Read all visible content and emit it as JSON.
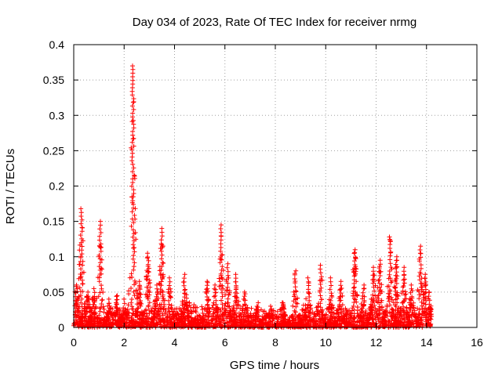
{
  "chart_data": {
    "type": "scatter",
    "title": "Day 034 of 2023, Rate Of TEC Index for receiver nrmg",
    "xlabel": "GPS time / hours",
    "ylabel": "ROTI / TECUs",
    "xlim": [
      0,
      16
    ],
    "ylim": [
      0,
      0.4
    ],
    "x_ticks": [
      "0",
      "2",
      "4",
      "6",
      "8",
      "10",
      "12",
      "14",
      "16"
    ],
    "y_ticks": [
      "0",
      "0.05",
      "0.1",
      "0.15",
      "0.2",
      "0.25",
      "0.3",
      "0.35",
      "0.4"
    ],
    "grid": true,
    "marker": "+",
    "color": "#ff0000",
    "series": [
      {
        "name": "ROTI",
        "peaks": [
          {
            "x": 0.1,
            "y": 0.06
          },
          {
            "x": 0.3,
            "y": 0.168
          },
          {
            "x": 0.55,
            "y": 0.05
          },
          {
            "x": 0.8,
            "y": 0.055
          },
          {
            "x": 1.05,
            "y": 0.15
          },
          {
            "x": 1.4,
            "y": 0.04
          },
          {
            "x": 1.7,
            "y": 0.045
          },
          {
            "x": 2.0,
            "y": 0.04
          },
          {
            "x": 2.35,
            "y": 0.37
          },
          {
            "x": 2.6,
            "y": 0.065
          },
          {
            "x": 2.95,
            "y": 0.105
          },
          {
            "x": 3.3,
            "y": 0.06
          },
          {
            "x": 3.5,
            "y": 0.14
          },
          {
            "x": 3.8,
            "y": 0.07
          },
          {
            "x": 4.4,
            "y": 0.075
          },
          {
            "x": 4.6,
            "y": 0.035
          },
          {
            "x": 5.3,
            "y": 0.065
          },
          {
            "x": 5.6,
            "y": 0.06
          },
          {
            "x": 5.85,
            "y": 0.145
          },
          {
            "x": 6.1,
            "y": 0.09
          },
          {
            "x": 6.45,
            "y": 0.075
          },
          {
            "x": 6.8,
            "y": 0.05
          },
          {
            "x": 7.3,
            "y": 0.035
          },
          {
            "x": 7.8,
            "y": 0.03
          },
          {
            "x": 8.3,
            "y": 0.035
          },
          {
            "x": 8.8,
            "y": 0.08
          },
          {
            "x": 9.3,
            "y": 0.07
          },
          {
            "x": 9.8,
            "y": 0.088
          },
          {
            "x": 10.2,
            "y": 0.07
          },
          {
            "x": 10.6,
            "y": 0.065
          },
          {
            "x": 11.15,
            "y": 0.11
          },
          {
            "x": 11.5,
            "y": 0.06
          },
          {
            "x": 11.9,
            "y": 0.085
          },
          {
            "x": 12.15,
            "y": 0.095
          },
          {
            "x": 12.55,
            "y": 0.128
          },
          {
            "x": 12.8,
            "y": 0.1
          },
          {
            "x": 13.1,
            "y": 0.085
          },
          {
            "x": 13.4,
            "y": 0.06
          },
          {
            "x": 13.75,
            "y": 0.115
          },
          {
            "x": 13.95,
            "y": 0.075
          },
          {
            "x": 14.1,
            "y": 0.05
          }
        ],
        "baseline_range": [
          0,
          14.2
        ],
        "baseline_level": 0.015
      }
    ]
  }
}
